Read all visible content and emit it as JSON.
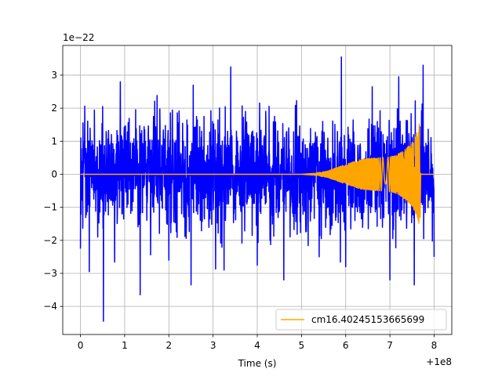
{
  "chart_data": {
    "type": "line",
    "title": "",
    "xlabel": "Time (s)",
    "ylabel": "",
    "x_offset_label": "+1e8",
    "y_scale_label": "1e−22",
    "xlim": [
      -0.4,
      8.4
    ],
    "ylim": [
      -4.85,
      3.9
    ],
    "x_ticks": [
      0,
      1,
      2,
      3,
      4,
      5,
      6,
      7,
      8
    ],
    "x_tick_labels": [
      "0",
      "1",
      "2",
      "3",
      "4",
      "5",
      "6",
      "7",
      "8"
    ],
    "y_ticks": [
      -4,
      -3,
      -2,
      -1,
      0,
      1,
      2,
      3
    ],
    "y_tick_labels": [
      "−4",
      "−3",
      "−2",
      "−1",
      "0",
      "1",
      "2",
      "3"
    ],
    "grid": true,
    "legend_position": "lower-right",
    "series": [
      {
        "name": "",
        "color": "#0000ff",
        "style": "dense noise",
        "x_range": [
          0,
          8.0
        ],
        "typical_amplitude": 1.8,
        "min": -4.45,
        "max": 3.55,
        "upper_envelope": [
          {
            "x": 0.0,
            "y": 2.2
          },
          {
            "x": 0.5,
            "y": 2.05
          },
          {
            "x": 0.9,
            "y": 2.8
          },
          {
            "x": 1.35,
            "y": 3.0
          },
          {
            "x": 2.0,
            "y": 2.25
          },
          {
            "x": 2.55,
            "y": 2.7
          },
          {
            "x": 3.4,
            "y": 3.25
          },
          {
            "x": 4.0,
            "y": 2.6
          },
          {
            "x": 4.6,
            "y": 2.85
          },
          {
            "x": 5.4,
            "y": 2.3
          },
          {
            "x": 5.9,
            "y": 3.55
          },
          {
            "x": 6.6,
            "y": 2.65
          },
          {
            "x": 7.2,
            "y": 2.95
          },
          {
            "x": 7.75,
            "y": 3.3
          },
          {
            "x": 8.0,
            "y": 1.6
          }
        ],
        "lower_envelope": [
          {
            "x": 0.0,
            "y": -2.25
          },
          {
            "x": 0.2,
            "y": -2.95
          },
          {
            "x": 0.52,
            "y": -4.45
          },
          {
            "x": 1.35,
            "y": -3.65
          },
          {
            "x": 2.0,
            "y": -2.6
          },
          {
            "x": 2.5,
            "y": -3.35
          },
          {
            "x": 3.25,
            "y": -2.9
          },
          {
            "x": 4.0,
            "y": -2.75
          },
          {
            "x": 4.6,
            "y": -3.2
          },
          {
            "x": 5.4,
            "y": -2.5
          },
          {
            "x": 6.0,
            "y": -2.8
          },
          {
            "x": 7.0,
            "y": -3.2
          },
          {
            "x": 7.55,
            "y": -3.35
          },
          {
            "x": 8.0,
            "y": -2.5
          }
        ]
      },
      {
        "name": "cm16.40245153665699",
        "color": "#ffa500",
        "style": "chirp",
        "x_range": [
          0,
          8.0
        ],
        "merger_time": 7.68,
        "amplitude_envelope": [
          {
            "x": 0.0,
            "y": 0.0
          },
          {
            "x": 5.0,
            "y": 0.0
          },
          {
            "x": 5.3,
            "y": 0.03
          },
          {
            "x": 5.6,
            "y": 0.1
          },
          {
            "x": 6.0,
            "y": 0.3
          },
          {
            "x": 6.4,
            "y": 0.47
          },
          {
            "x": 6.8,
            "y": 0.5
          },
          {
            "x": 7.1,
            "y": 0.55
          },
          {
            "x": 7.3,
            "y": 0.7
          },
          {
            "x": 7.5,
            "y": 0.95
          },
          {
            "x": 7.62,
            "y": 1.3
          },
          {
            "x": 7.68,
            "y": 1.62
          },
          {
            "x": 7.7,
            "y": 0.0
          },
          {
            "x": 8.0,
            "y": 0.0
          }
        ]
      }
    ]
  }
}
